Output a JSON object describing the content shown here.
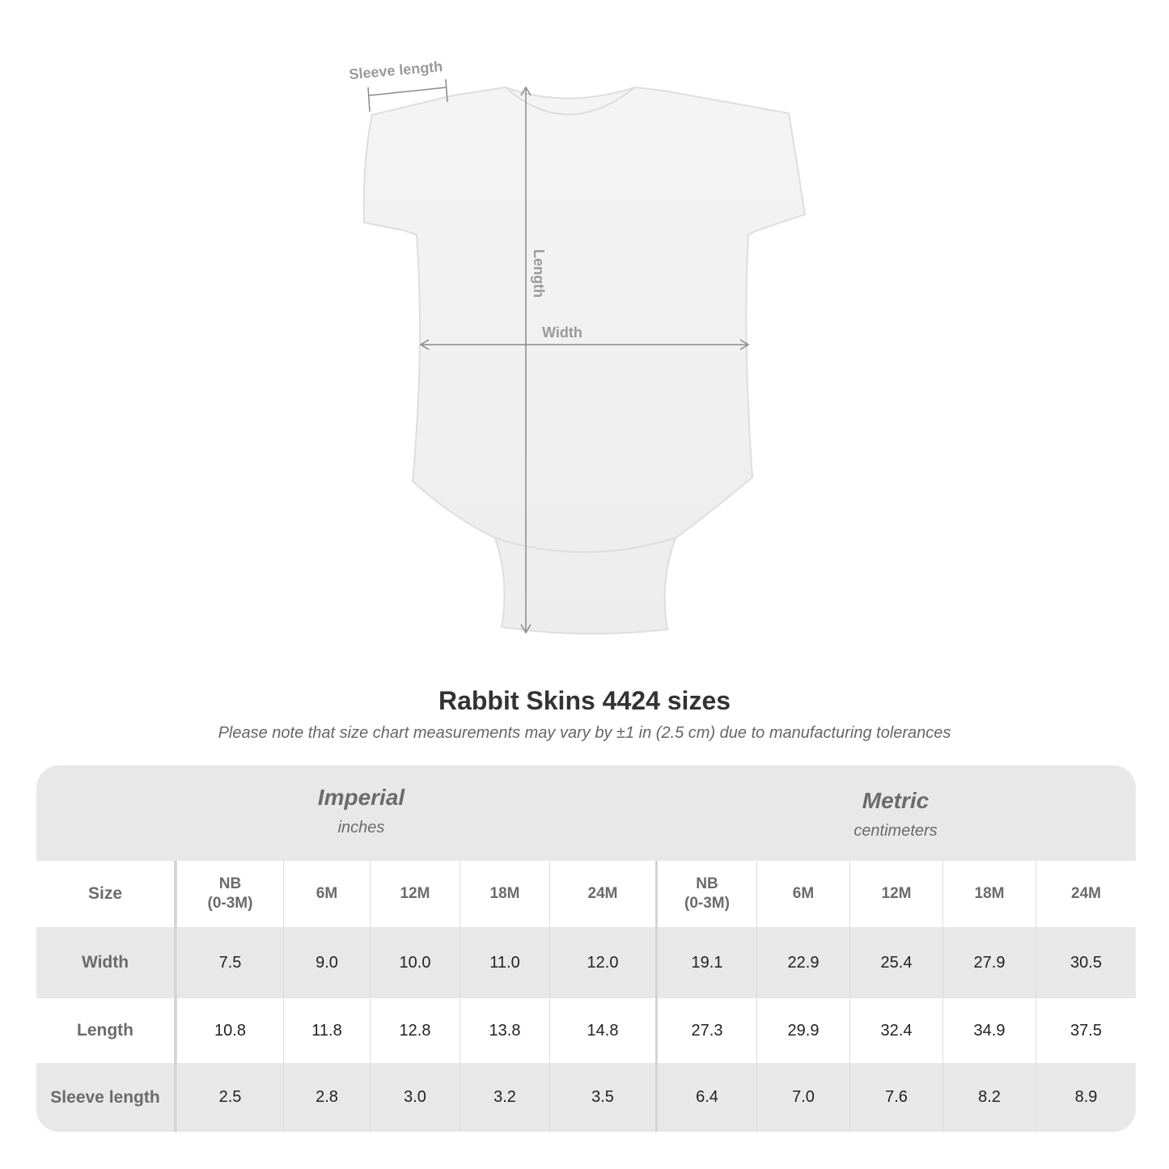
{
  "diagram": {
    "sleeve_label": "Sleeve length",
    "length_label": "Length",
    "width_label": "Width"
  },
  "title": "Rabbit Skins 4424 sizes",
  "note": "Please note that size chart measurements may vary by ±1 in (2.5 cm) due to manufacturing tolerances",
  "table": {
    "imperial": {
      "heading": "Imperial",
      "unit": "inches"
    },
    "metric": {
      "heading": "Metric",
      "unit": "centimeters"
    },
    "header": [
      "Size",
      "NB\n(0-3M)",
      "6M",
      "12M",
      "18M",
      "24M",
      "NB\n(0-3M)",
      "6M",
      "12M",
      "18M",
      "24M"
    ],
    "rows": [
      [
        "Width",
        "7.5",
        "9.0",
        "10.0",
        "11.0",
        "12.0",
        "19.1",
        "22.9",
        "25.4",
        "27.9",
        "30.5"
      ],
      [
        "Length",
        "10.8",
        "11.8",
        "12.8",
        "13.8",
        "14.8",
        "27.3",
        "29.9",
        "32.4",
        "34.9",
        "37.5"
      ],
      [
        "Sleeve length",
        "2.5",
        "2.8",
        "3.0",
        "3.2",
        "3.5",
        "6.4",
        "7.0",
        "7.6",
        "8.2",
        "8.9"
      ]
    ]
  }
}
